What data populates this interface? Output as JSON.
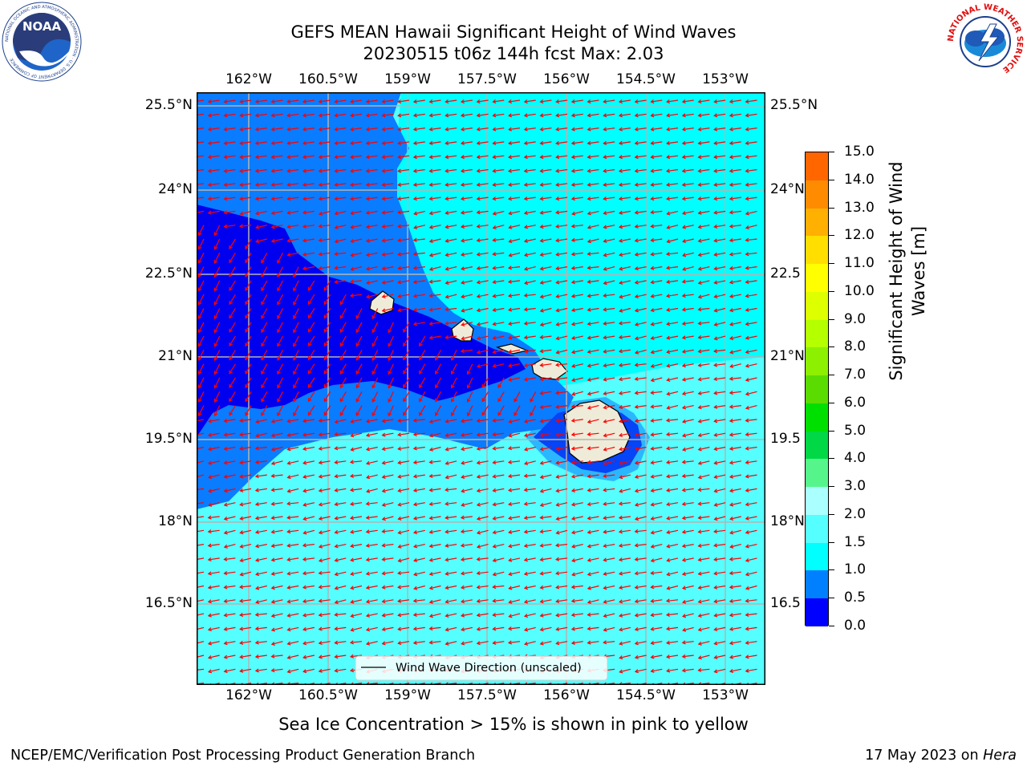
{
  "title": {
    "line1": "GEFS MEAN Hawaii Significant Height of Wind Waves",
    "line2": "20230515 t06z 144h fcst   Max: 2.03"
  },
  "axes": {
    "lon_labels": [
      "162°W",
      "160.5°W",
      "159°W",
      "157.5°W",
      "156°W",
      "154.5°W",
      "153°W"
    ],
    "lat_labels": [
      "25.5°N",
      "24°N",
      "22.5°N",
      "21°N",
      "19.5°N",
      "18°N",
      "16.5°N"
    ],
    "right_lat_labels": [
      "25.5°N",
      "24°N",
      "22.5",
      "21°N",
      "19.5",
      "18°N",
      "16.5"
    ]
  },
  "legend": {
    "label": "Wind Wave Direction (unscaled)"
  },
  "colorbar": {
    "label_line1": "Significant Height of Wind",
    "label_line2": "Waves [m]",
    "ticks": [
      "15.0",
      "14.0",
      "13.0",
      "12.0",
      "11.0",
      "10.0",
      "9.0",
      "8.0",
      "7.0",
      "6.0",
      "5.0",
      "4.0",
      "3.0",
      "2.0",
      "1.5",
      "1.0",
      "0.5",
      "0.0"
    ],
    "colors": [
      "#ff0000",
      "#ff3300",
      "#ff6600",
      "#ff8c00",
      "#ffb000",
      "#ffde00",
      "#ffff00",
      "#ddff00",
      "#b4ff00",
      "#8cf000",
      "#5adc00",
      "#00e000",
      "#00d845",
      "#55f58c",
      "#aaffff",
      "#55ffff",
      "#00ffff",
      "#0080ff",
      "#0000ff"
    ]
  },
  "footer": {
    "ice_note": "Sea Ice Concentration > 15% is shown in pink to yellow",
    "left": "NCEP/EMC/Verification Post Processing Product Generation Branch",
    "right_date": "17 May 2023 on ",
    "right_host": "Hera"
  },
  "logos": {
    "noaa_text": "NOAA",
    "noaa_ring": "NATIONAL OCEANIC AND ATMOSPHERIC ADMINISTRATION · U.S. DEPARTMENT OF COMMERCE",
    "nws_ring": "NATIONAL WEATHER SERVICE"
  },
  "map_colors": {
    "land": "#eeecd8",
    "dark_blue": "#0000ee",
    "mid_blue": "#0a7cff",
    "cyan": "#00ffff",
    "light_cyan": "#55ffff",
    "arrow": "#ff0000",
    "grid": "#b4b4b4"
  }
}
